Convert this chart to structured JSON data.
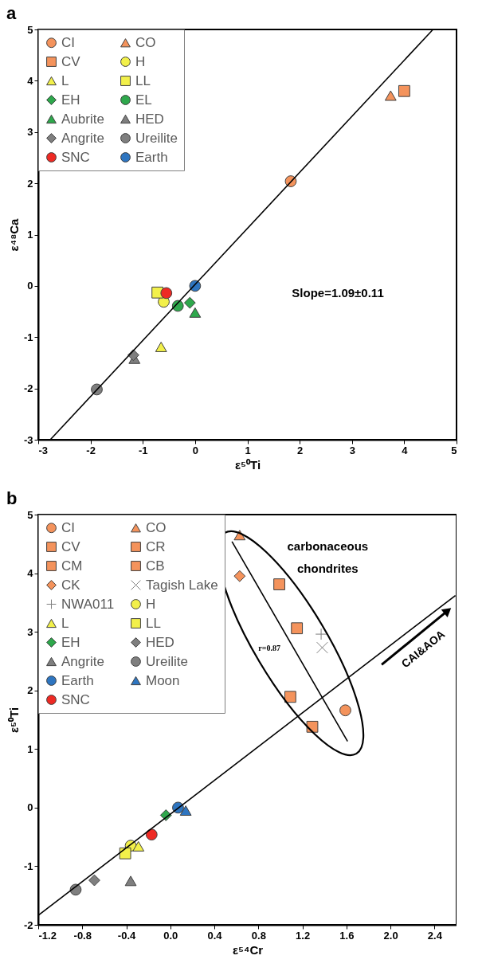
{
  "chart_data": [
    {
      "type": "scatter",
      "title": "a",
      "xlabel": "ε⁵⁰Ti",
      "ylabel": "ε⁴⁸Ca",
      "legend": "top left",
      "xlim": [
        -3,
        5
      ],
      "ylim": [
        -3,
        5
      ],
      "xticks": [
        -3,
        -2,
        -1,
        0,
        1,
        2,
        3,
        4,
        5
      ],
      "yticks": [
        -3,
        -2,
        -1,
        0,
        1,
        2,
        3,
        4,
        5
      ],
      "annotations": [
        "Slope=1.09±0.11"
      ],
      "series": [
        {
          "name": "CI",
          "color": "#f4935c",
          "marker": "circle",
          "x": [
            1.83
          ],
          "values": [
            2.04
          ]
        },
        {
          "name": "CO",
          "color": "#f4935c",
          "marker": "triangle",
          "x": [
            3.74
          ],
          "values": [
            3.71
          ]
        },
        {
          "name": "CV",
          "color": "#f4935c",
          "marker": "square",
          "x": [
            4.0
          ],
          "values": [
            3.8
          ]
        },
        {
          "name": "H",
          "color": "#f2f04a",
          "marker": "circle",
          "x": [
            -0.6
          ],
          "values": [
            -0.31
          ]
        },
        {
          "name": "L",
          "color": "#f2f04a",
          "marker": "triangle",
          "x": [
            -0.65
          ],
          "values": [
            -1.19
          ]
        },
        {
          "name": "LL",
          "color": "#f2f04a",
          "marker": "square",
          "x": [
            -0.72
          ],
          "values": [
            -0.13
          ]
        },
        {
          "name": "EH",
          "color": "#2ea84c",
          "marker": "diamond",
          "x": [
            -0.1
          ],
          "values": [
            -0.33
          ]
        },
        {
          "name": "EL",
          "color": "#2ea84c",
          "marker": "circle",
          "x": [
            -0.33
          ],
          "values": [
            -0.39
          ]
        },
        {
          "name": "Aubrite",
          "color": "#2ea84c",
          "marker": "triangle",
          "x": [
            0.0
          ],
          "values": [
            -0.52
          ]
        },
        {
          "name": "HED",
          "color": "#7f7f7f",
          "marker": "triangle",
          "x": [
            -1.16
          ],
          "values": [
            -1.42
          ]
        },
        {
          "name": "Angrite",
          "color": "#7f7f7f",
          "marker": "diamond",
          "x": [
            -1.18
          ],
          "values": [
            -1.35
          ]
        },
        {
          "name": "Ureilite",
          "color": "#7f7f7f",
          "marker": "circle",
          "x": [
            -1.88
          ],
          "values": [
            -2.02
          ]
        },
        {
          "name": "SNC",
          "color": "#ee2a24",
          "marker": "circle",
          "x": [
            -0.55
          ],
          "values": [
            -0.14
          ]
        },
        {
          "name": "Earth",
          "color": "#2e75c0",
          "marker": "circle",
          "x": [
            0.0
          ],
          "values": [
            0.0
          ]
        },
        {
          "type": "line",
          "color": "#000000",
          "x": [
            -2.77,
            4.55
          ],
          "values": [
            -3,
            5
          ]
        }
      ]
    },
    {
      "type": "scatter",
      "title": "b",
      "xlabel": "ε⁵⁴Cr",
      "ylabel": "ε⁵⁰Ti",
      "legend": "top left",
      "xlim": [
        -1.2,
        2.6
      ],
      "ylim": [
        -2,
        5
      ],
      "xticks": [
        -1.2,
        -0.8,
        -0.4,
        {
          "value": 0,
          "label": "0.0"
        },
        0.4,
        0.8,
        1.2,
        1.6,
        {
          "value": 2,
          "label": "2.0"
        },
        2.4
      ],
      "yticks": [
        -2,
        -1,
        0,
        1,
        2,
        3,
        4,
        5
      ],
      "annotations": [
        "carbonaceous chondrites",
        "r=0.87",
        "CAI&AOA"
      ],
      "series": [
        {
          "name": "CI",
          "color": "#f4935c",
          "marker": "circle",
          "x": [
            1.59
          ],
          "values": [
            1.66
          ]
        },
        {
          "name": "CO",
          "color": "#f4935c",
          "marker": "triangle",
          "x": [
            0.63
          ],
          "values": [
            4.65
          ]
        },
        {
          "name": "CV",
          "color": "#f4935c",
          "marker": "square",
          "x": [
            0.99
          ],
          "values": [
            3.81
          ]
        },
        {
          "name": "CR",
          "color": "#f4935c",
          "marker": "square",
          "x": [
            1.29
          ],
          "values": [
            1.38
          ]
        },
        {
          "name": "CM",
          "color": "#f4935c",
          "marker": "square",
          "x": [
            1.15
          ],
          "values": [
            3.06
          ]
        },
        {
          "name": "CB",
          "color": "#f4935c",
          "marker": "square",
          "x": [
            1.09
          ],
          "values": [
            1.89
          ]
        },
        {
          "name": "CK",
          "color": "#f4935c",
          "marker": "diamond",
          "x": [
            0.63
          ],
          "values": [
            3.95
          ]
        },
        {
          "name": "Tagish Lake",
          "color": "#7f7f7f",
          "marker": "x",
          "x": [
            1.38
          ],
          "values": [
            2.73
          ]
        },
        {
          "name": "NWA011",
          "color": "#7f7f7f",
          "marker": "cross",
          "x": [
            1.37
          ],
          "values": [
            2.96
          ]
        },
        {
          "name": "H",
          "color": "#f2f04a",
          "marker": "circle",
          "x": [
            -0.36
          ],
          "values": [
            -0.65
          ]
        },
        {
          "name": "L",
          "color": "#f2f04a",
          "marker": "triangle",
          "x": [
            -0.29
          ],
          "values": [
            -0.66
          ]
        },
        {
          "name": "LL",
          "color": "#f2f04a",
          "marker": "square",
          "x": [
            -0.41
          ],
          "values": [
            -0.78
          ]
        },
        {
          "name": "EH",
          "color": "#2ea84c",
          "marker": "diamond",
          "x": [
            -0.04
          ],
          "values": [
            -0.13
          ]
        },
        {
          "name": "HED",
          "color": "#7f7f7f",
          "marker": "diamond",
          "x": [
            -0.69
          ],
          "values": [
            -1.24
          ]
        },
        {
          "name": "Angrite",
          "color": "#7f7f7f",
          "marker": "triangle",
          "x": [
            -0.36
          ],
          "values": [
            -1.25
          ]
        },
        {
          "name": "Ureilite",
          "color": "#7f7f7f",
          "marker": "circle",
          "x": [
            -0.86
          ],
          "values": [
            -1.4
          ]
        },
        {
          "name": "Earth",
          "color": "#2e75c0",
          "marker": "circle",
          "x": [
            0.07
          ],
          "values": [
            0.0
          ]
        },
        {
          "name": "Moon",
          "color": "#2e75c0",
          "marker": "triangle",
          "x": [
            0.14
          ],
          "values": [
            -0.05
          ]
        },
        {
          "name": "SNC",
          "color": "#ee2a24",
          "marker": "circle",
          "x": [
            -0.17
          ],
          "values": [
            -0.46
          ]
        },
        {
          "type": "line",
          "color": "#000000",
          "x": [
            -1.2,
            2.59
          ],
          "values": [
            -1.84,
            3.62
          ]
        },
        {
          "type": "line",
          "color": "#000000",
          "x": [
            0.56,
            1.61
          ],
          "values": [
            4.54,
            1.13
          ]
        }
      ]
    }
  ]
}
